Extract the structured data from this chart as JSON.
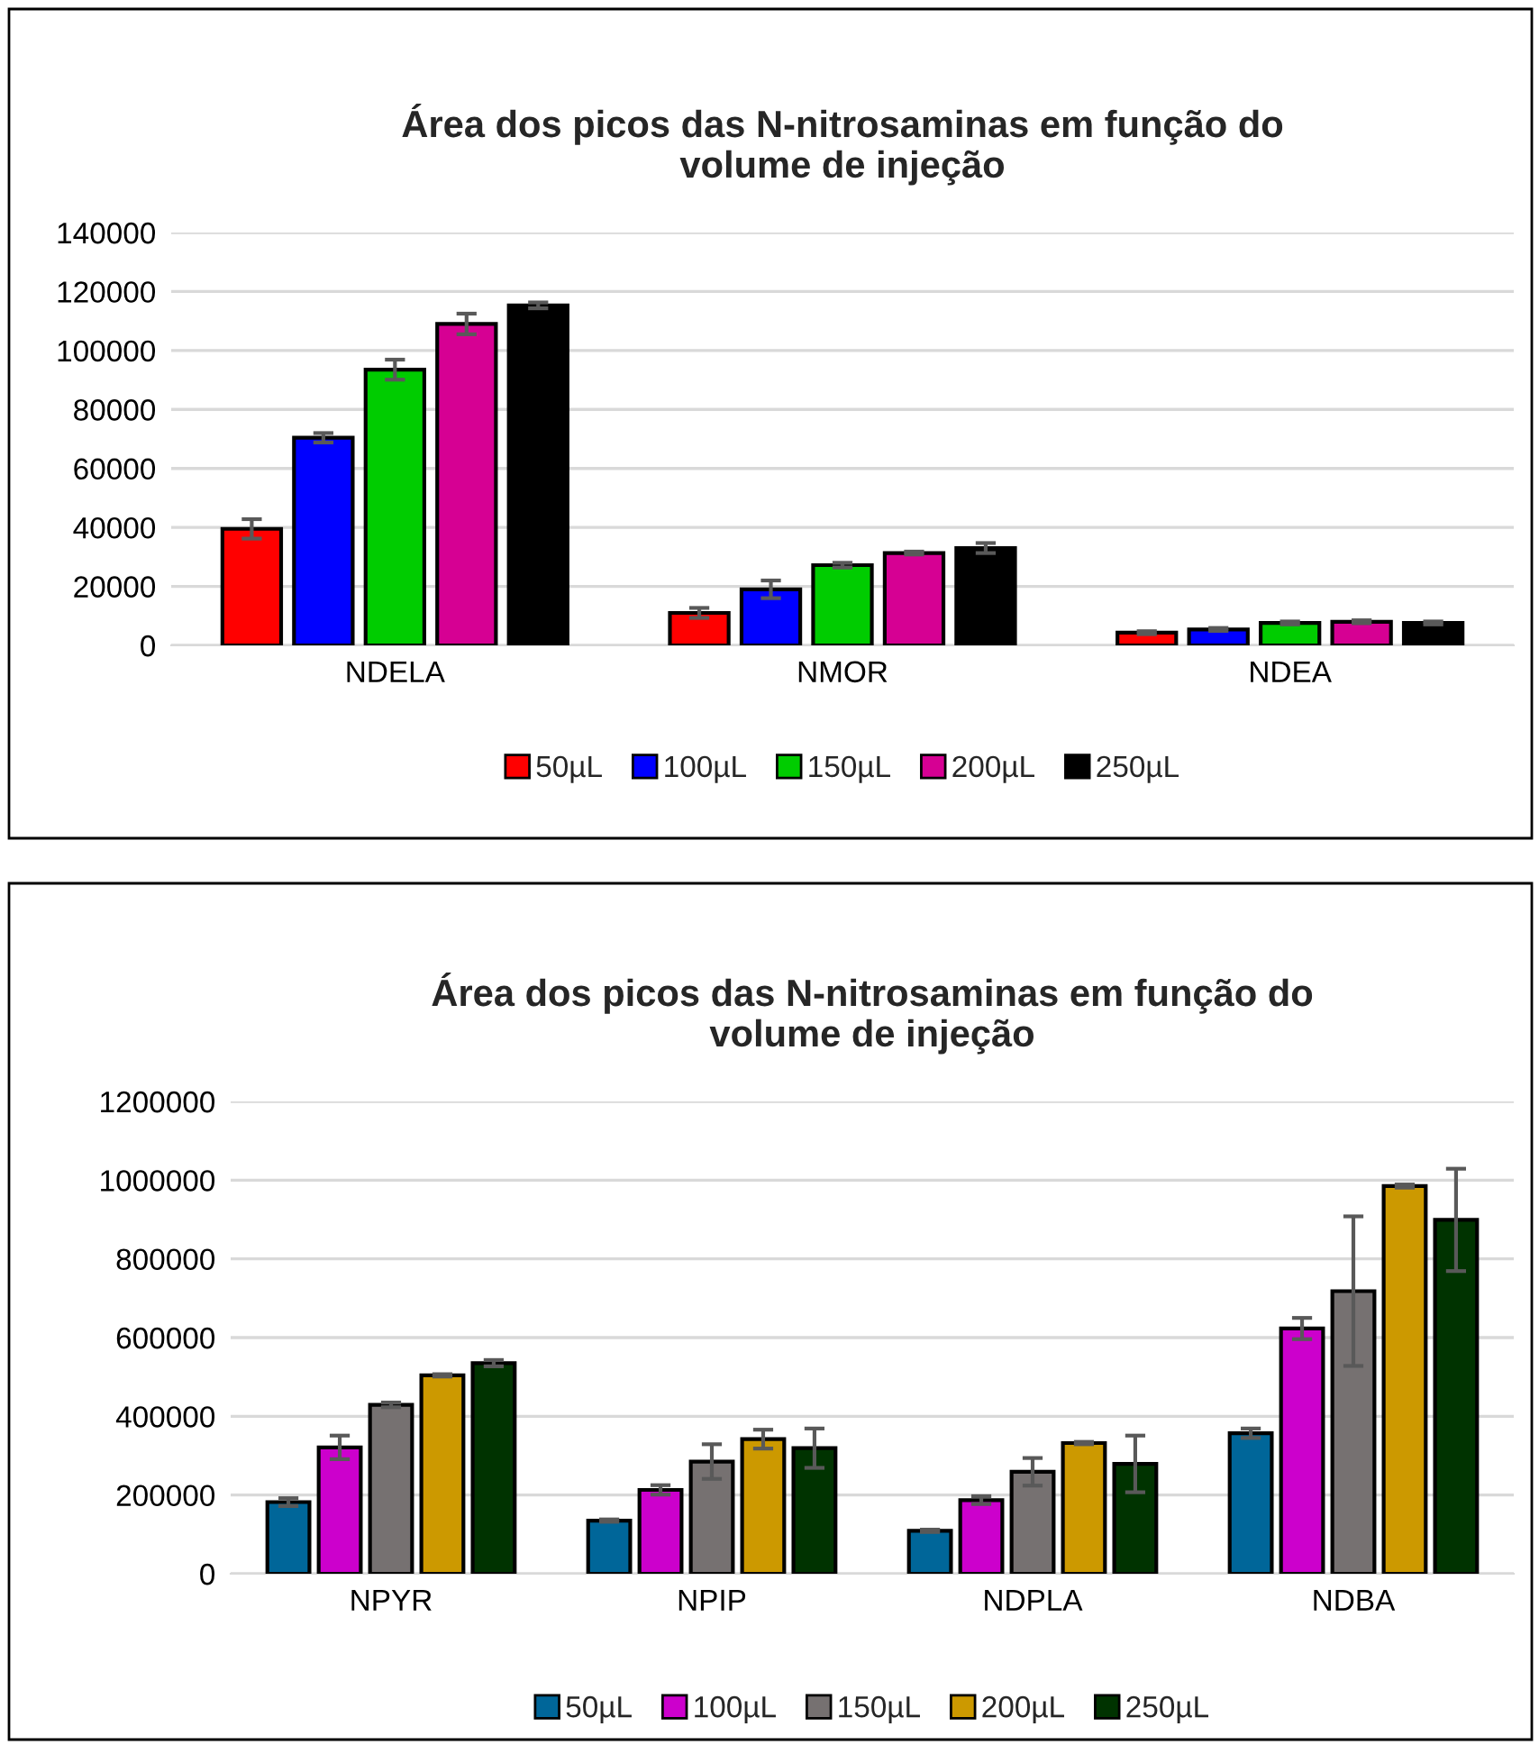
{
  "chart_data": [
    {
      "type": "bar",
      "title": "Área dos picos das N-nitrosaminas em função do\nvolume de injeção",
      "categories": [
        "NDELA",
        "NMOR",
        "NDEA"
      ],
      "series": [
        {
          "name": "50µL",
          "color": "#ff0000",
          "values": [
            39500,
            11000,
            4300
          ],
          "errors": [
            3300,
            1700,
            500
          ]
        },
        {
          "name": "100µL",
          "color": "#0000ff",
          "values": [
            70400,
            19000,
            5400
          ],
          "errors": [
            1600,
            3000,
            500
          ]
        },
        {
          "name": "150µL",
          "color": "#00cc00",
          "values": [
            93500,
            27200,
            7600
          ],
          "errors": [
            3400,
            800,
            500
          ]
        },
        {
          "name": "200µL",
          "color": "#d60093",
          "values": [
            109000,
            31300,
            8000
          ],
          "errors": [
            3500,
            500,
            500
          ]
        },
        {
          "name": "250µL",
          "color": "#000000",
          "values": [
            115300,
            33000,
            7600
          ],
          "errors": [
            1000,
            1700,
            500
          ]
        }
      ],
      "ylim": [
        0,
        140000
      ],
      "yticks": [
        0,
        20000,
        40000,
        60000,
        80000,
        100000,
        120000,
        140000
      ],
      "grid": "y",
      "legend": "bottom"
    },
    {
      "type": "bar",
      "title": "Área dos picos das N-nitrosaminas em função do\nvolume de injeção",
      "categories": [
        "NPYR",
        "NPIP",
        "NDPLA",
        "NDBA"
      ],
      "series": [
        {
          "name": "50µL",
          "color": "#006699",
          "values": [
            182000,
            135000,
            109000,
            357000
          ],
          "errors": [
            10000,
            3000,
            3000,
            12000
          ]
        },
        {
          "name": "100µL",
          "color": "#cc00cc",
          "values": [
            321000,
            213000,
            187000,
            623000
          ],
          "errors": [
            30000,
            12000,
            10000,
            27000
          ]
        },
        {
          "name": "150µL",
          "color": "#767171",
          "values": [
            429000,
            285000,
            259000,
            718000
          ],
          "errors": [
            6000,
            44000,
            35000,
            190000
          ]
        },
        {
          "name": "200µL",
          "color": "#cc9900",
          "values": [
            504000,
            342000,
            332000,
            985000
          ],
          "errors": [
            3000,
            24000,
            3000,
            4000
          ]
        },
        {
          "name": "250µL",
          "color": "#003300",
          "values": [
            535000,
            319000,
            279000,
            899000
          ],
          "errors": [
            8000,
            50000,
            72000,
            130000
          ]
        }
      ],
      "ylim": [
        0,
        1200000
      ],
      "yticks": [
        0,
        200000,
        400000,
        600000,
        800000,
        1000000,
        1200000
      ],
      "grid": "y",
      "legend": "bottom"
    }
  ]
}
